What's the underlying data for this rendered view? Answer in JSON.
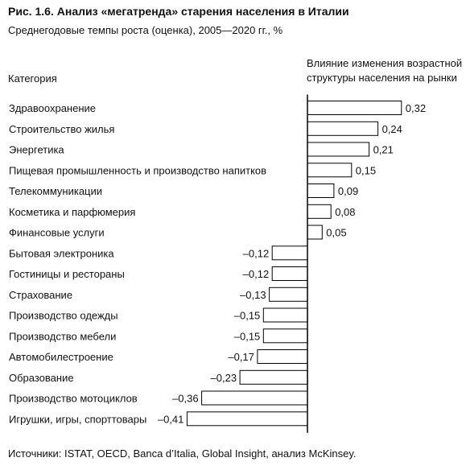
{
  "header": {
    "title": "Рис. 1.6. Анализ «мегатренда» старения населения в Италии",
    "subtitle": "Среднегодовые темпы роста (оценка), 2005—2020 гг., %",
    "category_header": "Категория",
    "column_header_line1": "Влияние изменения возрастной",
    "column_header_line2": "структуры населения на рынки"
  },
  "footer": {
    "source": "Источники: ISTAT, OECD, Banca d’Italia, Global Insight, анализ McKinsey."
  },
  "chart_data": {
    "type": "bar",
    "orientation": "horizontal",
    "title": "Рис. 1.6. Анализ «мегатренда» старения населения в Италии",
    "subtitle": "Среднегодовые темпы роста (оценка), 2005—2020 гг., %",
    "categories": [
      "Здравоохранение",
      "Строительство жилья",
      "Энергетика",
      "Пищевая промышленность и производство напитков",
      "Телекоммуникации",
      "Косметика и парфюмерия",
      "Финансовые услуги",
      "Бытовая электроника",
      "Гостиницы и рестораны",
      "Страхование",
      "Производство одежды",
      "Производство мебели",
      "Автомобилестроение",
      "Образование",
      "Производство мотоциклов",
      "Игрушки, игры, спорттовары"
    ],
    "values": [
      0.32,
      0.24,
      0.21,
      0.15,
      0.09,
      0.08,
      0.05,
      -0.12,
      -0.12,
      -0.13,
      -0.15,
      -0.15,
      -0.17,
      -0.23,
      -0.36,
      -0.41
    ],
    "value_labels": [
      "0,32",
      "0,24",
      "0,21",
      "0,15",
      "0,09",
      "0,08",
      "0,05",
      "–0,12",
      "–0,12",
      "–0,13",
      "–0,15",
      "–0,15",
      "–0,17",
      "–0,23",
      "–0,36",
      "–0,41"
    ],
    "xlim": [
      -0.41,
      0.32
    ],
    "grid": false,
    "legend": "none",
    "bar_fill": "#ffffff",
    "bar_stroke": "#000000"
  }
}
